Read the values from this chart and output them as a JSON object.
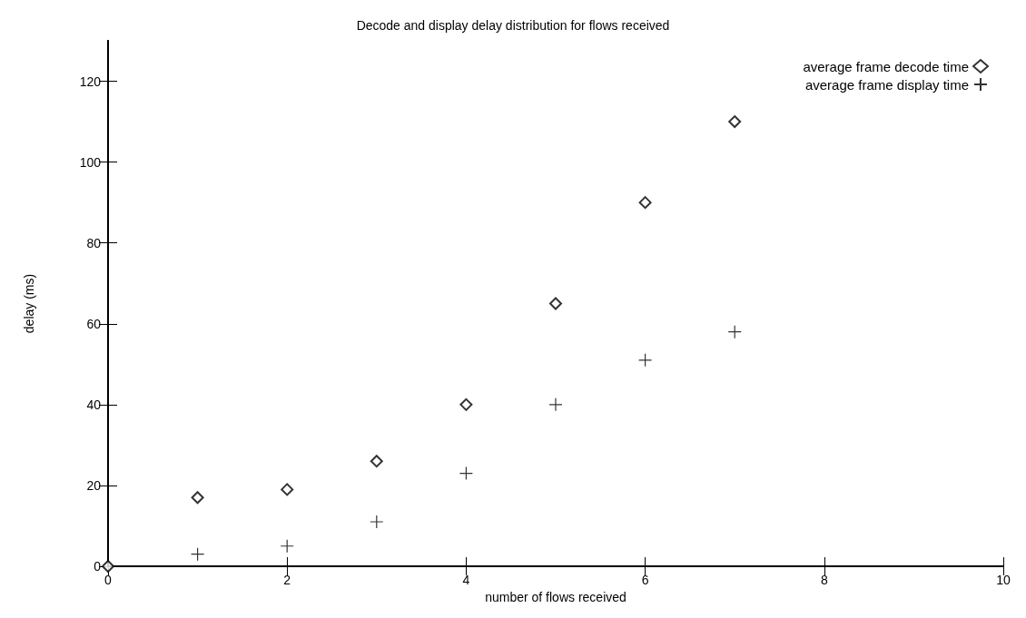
{
  "chart_data": {
    "type": "scatter",
    "title": "Decode and display delay distribution for flows received",
    "xlabel": "number of flows received",
    "ylabel": "delay (ms)",
    "x": [
      0,
      1,
      2,
      3,
      4,
      5,
      6,
      7
    ],
    "series": [
      {
        "name": "average frame decode time",
        "color": "#000000",
        "marker": "diamond",
        "values": [
          0,
          17,
          19,
          26,
          40,
          65,
          90,
          110
        ]
      },
      {
        "name": "average frame display time",
        "color": "#000000",
        "marker": "cross",
        "values": [
          null,
          3,
          5,
          11,
          23,
          40,
          51,
          58
        ]
      }
    ],
    "xlim": [
      0,
      10
    ],
    "xticks": [
      0,
      2,
      4,
      6,
      8,
      10
    ],
    "ylim": [
      0,
      130
    ],
    "yticks": [
      0,
      20,
      40,
      60,
      80,
      100,
      120
    ],
    "grid": false,
    "legend": "top right"
  }
}
